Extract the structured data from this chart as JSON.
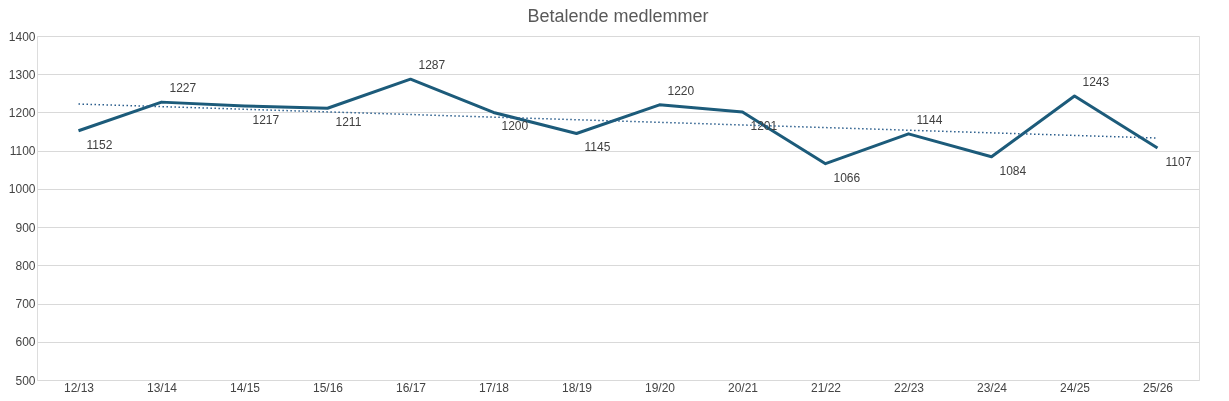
{
  "chart_data": {
    "type": "line",
    "title": "Betalende medlemmer",
    "categories": [
      "12/13",
      "13/14",
      "14/15",
      "15/16",
      "16/17",
      "17/18",
      "18/19",
      "19/20",
      "20/21",
      "21/22",
      "22/23",
      "23/24",
      "24/25",
      "25/26"
    ],
    "series": [
      {
        "color": "#1c5b7a",
        "values": [
          1152,
          1227,
          1217,
          1211,
          1287,
          1200,
          1145,
          1220,
          1201,
          1066,
          1144,
          1084,
          1243,
          1107
        ],
        "value_labels": [
          "1152",
          "1227",
          "1217",
          "1211",
          "1287",
          "1200",
          "1145",
          "1220",
          "1201",
          "1066",
          "1144",
          "1084",
          "1243",
          "1107"
        ]
      },
      {
        "type": "line",
        "line_style": "dotted",
        "color": "#2a5d8c",
        "x": [
          "12/13",
          "25/26"
        ],
        "values": [
          1222,
          1133
        ]
      }
    ],
    "ylim": [
      500,
      1400
    ],
    "yticks": [
      500,
      600,
      700,
      800,
      900,
      1000,
      1100,
      1200,
      1300,
      1400
    ],
    "grid": "y",
    "marker": "none"
  }
}
